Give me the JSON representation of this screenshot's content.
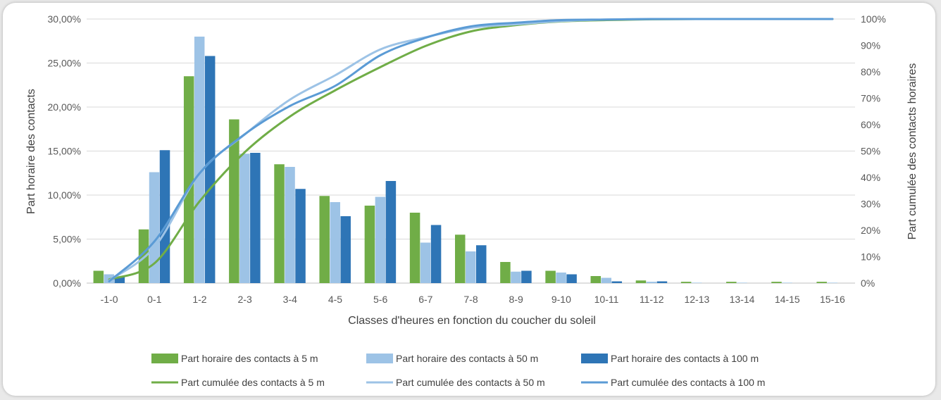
{
  "chart_data": {
    "type": "bar",
    "categories": [
      "-1-0",
      "0-1",
      "1-2",
      "2-3",
      "3-4",
      "4-5",
      "5-6",
      "6-7",
      "7-8",
      "8-9",
      "9-10",
      "10-11",
      "11-12",
      "12-13",
      "13-14",
      "14-15",
      "15-16"
    ],
    "xlabel": "Classes d'heures en fonction du coucher du soleil",
    "ylabel": "Part horaire des contacts",
    "y2label": "Part cumulée des contacts horaires",
    "ylim": [
      0,
      30
    ],
    "y2lim": [
      0,
      100
    ],
    "yticks": [
      "0,00%",
      "5,00%",
      "10,00%",
      "15,00%",
      "20,00%",
      "25,00%",
      "30,00%"
    ],
    "y2ticks": [
      "0%",
      "10%",
      "20%",
      "30%",
      "40%",
      "50%",
      "60%",
      "70%",
      "80%",
      "90%",
      "100%"
    ],
    "grid": true,
    "legend_position": "bottom",
    "series": [
      {
        "name": "Part horaire des contacts à 5 m",
        "kind": "bar",
        "axis": "left",
        "color": "#70ad47",
        "values": [
          1.4,
          6.1,
          23.5,
          18.6,
          13.5,
          9.9,
          8.8,
          8.0,
          5.5,
          2.4,
          1.4,
          0.8,
          0.3,
          0.15,
          0.15,
          0.15,
          0.15
        ]
      },
      {
        "name": "Part horaire des contacts à 50 m",
        "kind": "bar",
        "axis": "left",
        "color": "#9dc3e6",
        "values": [
          1.0,
          12.6,
          28.0,
          14.7,
          13.2,
          9.2,
          9.8,
          4.6,
          3.6,
          1.3,
          1.2,
          0.6,
          0.15,
          0.05,
          0.05,
          0.05,
          0.05
        ]
      },
      {
        "name": "Part horaire des contacts à 100 m",
        "kind": "bar",
        "axis": "left",
        "color": "#2e75b6",
        "values": [
          0.7,
          15.1,
          25.8,
          14.8,
          10.7,
          7.6,
          11.6,
          6.6,
          4.3,
          1.4,
          1.0,
          0.2,
          0.2,
          0.0,
          0.0,
          0.0,
          0.0
        ]
      },
      {
        "name": "Part cumulée des contacts à 5 m",
        "kind": "line",
        "axis": "right",
        "color": "#70ad47",
        "values": [
          1.4,
          7.5,
          31,
          49.6,
          63.1,
          73,
          81.8,
          89.8,
          95.3,
          97.7,
          99.1,
          99.6,
          99.9,
          100,
          100,
          100,
          100
        ]
      },
      {
        "name": "Part cumulée des contacts à 50 m",
        "kind": "line",
        "axis": "right",
        "color": "#9dc3e6",
        "values": [
          1.0,
          13.6,
          41.6,
          56.3,
          69.5,
          78.7,
          88.5,
          93.1,
          96.7,
          98,
          99.2,
          99.8,
          99.95,
          100,
          100,
          100,
          100
        ]
      },
      {
        "name": "Part cumulée des contacts à 100 m",
        "kind": "line",
        "axis": "right",
        "color": "#5b9bd5",
        "values": [
          0.7,
          15.8,
          41.6,
          56.4,
          67.1,
          74.7,
          86.3,
          92.9,
          97.2,
          98.6,
          99.6,
          99.8,
          100,
          100,
          100,
          100,
          100
        ]
      }
    ]
  }
}
